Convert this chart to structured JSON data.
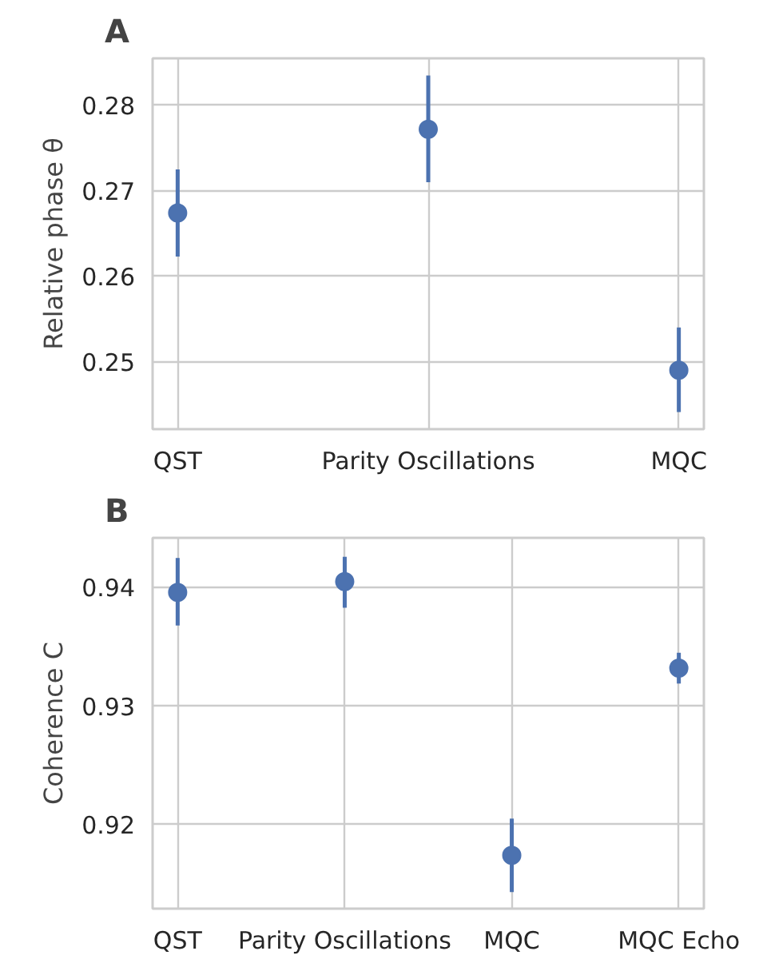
{
  "chart_data": [
    {
      "type": "scatter",
      "title": "A",
      "ylabel": "Relative phase θ",
      "categories": [
        "QST",
        "Parity Oscillations",
        "MQC"
      ],
      "series": [
        {
          "color": "#4c72b0",
          "values": [
            0.2674,
            0.2772,
            0.249
          ],
          "errors": [
            [
              0.2623,
              0.2725
            ],
            [
              0.271,
              0.2835
            ],
            [
              0.2441,
              0.254
            ]
          ]
        }
      ],
      "ylim": [
        0.2421,
        0.2855
      ],
      "yticks": [
        0.25,
        0.26,
        0.27,
        0.28
      ],
      "grid": true,
      "marker": "circle"
    },
    {
      "type": "scatter",
      "title": "B",
      "ylabel": "Coherence C",
      "categories": [
        "QST",
        "Parity Oscillations",
        "MQC",
        "MQC Echo"
      ],
      "series": [
        {
          "color": "#4c72b0",
          "values": [
            0.9396,
            0.9405,
            0.9174,
            0.9332
          ],
          "errors": [
            [
              0.9368,
              0.9425
            ],
            [
              0.9383,
              0.9426
            ],
            [
              0.9143,
              0.9205
            ],
            [
              0.9319,
              0.9345
            ]
          ]
        }
      ],
      "ylim": [
        0.9129,
        0.9442
      ],
      "yticks": [
        0.92,
        0.93,
        0.94
      ],
      "grid": true,
      "marker": "circle"
    }
  ]
}
